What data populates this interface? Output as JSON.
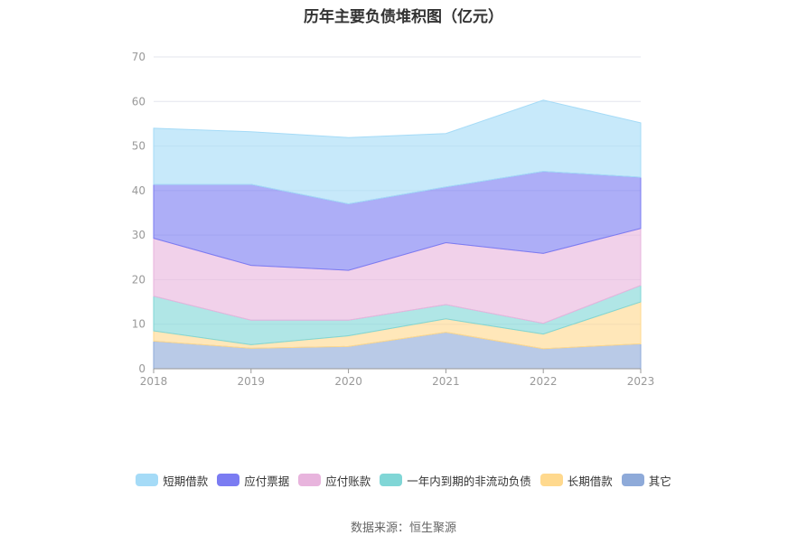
{
  "chart_data": {
    "type": "area",
    "stacked": true,
    "title": "历年主要负债堆积图（亿元）",
    "x": [
      "2018",
      "2019",
      "2020",
      "2021",
      "2022",
      "2023"
    ],
    "ylim": [
      0,
      70
    ],
    "yticks": [
      0,
      10,
      20,
      30,
      40,
      50,
      60,
      70
    ],
    "grid": true,
    "legend_position": "bottom",
    "series": [
      {
        "name": "其它",
        "color": "#8eaad9",
        "values": [
          6.2,
          4.6,
          5.0,
          8.2,
          4.5,
          5.6
        ]
      },
      {
        "name": "长期借款",
        "color": "#ffd98e",
        "values": [
          2.3,
          0.8,
          2.4,
          3.0,
          3.3,
          9.4
        ]
      },
      {
        "name": "一年内到期的非流动负债",
        "color": "#80d6d6",
        "values": [
          7.8,
          5.5,
          3.5,
          3.2,
          2.4,
          3.7
        ]
      },
      {
        "name": "应付账款",
        "color": "#e8b4dd",
        "values": [
          13.0,
          12.3,
          11.2,
          13.9,
          15.7,
          12.8
        ]
      },
      {
        "name": "应付票据",
        "color": "#7b7cf2",
        "values": [
          12.1,
          18.2,
          14.9,
          12.5,
          18.4,
          11.5
        ]
      },
      {
        "name": "短期借款",
        "color": "#a5dbf7",
        "values": [
          12.6,
          11.8,
          14.9,
          12.0,
          16.0,
          12.2
        ]
      }
    ]
  },
  "legend_order": [
    "短期借款",
    "应付票据",
    "应付账款",
    "一年内到期的非流动负债",
    "长期借款",
    "其它"
  ],
  "source": "数据来源：恒生聚源"
}
